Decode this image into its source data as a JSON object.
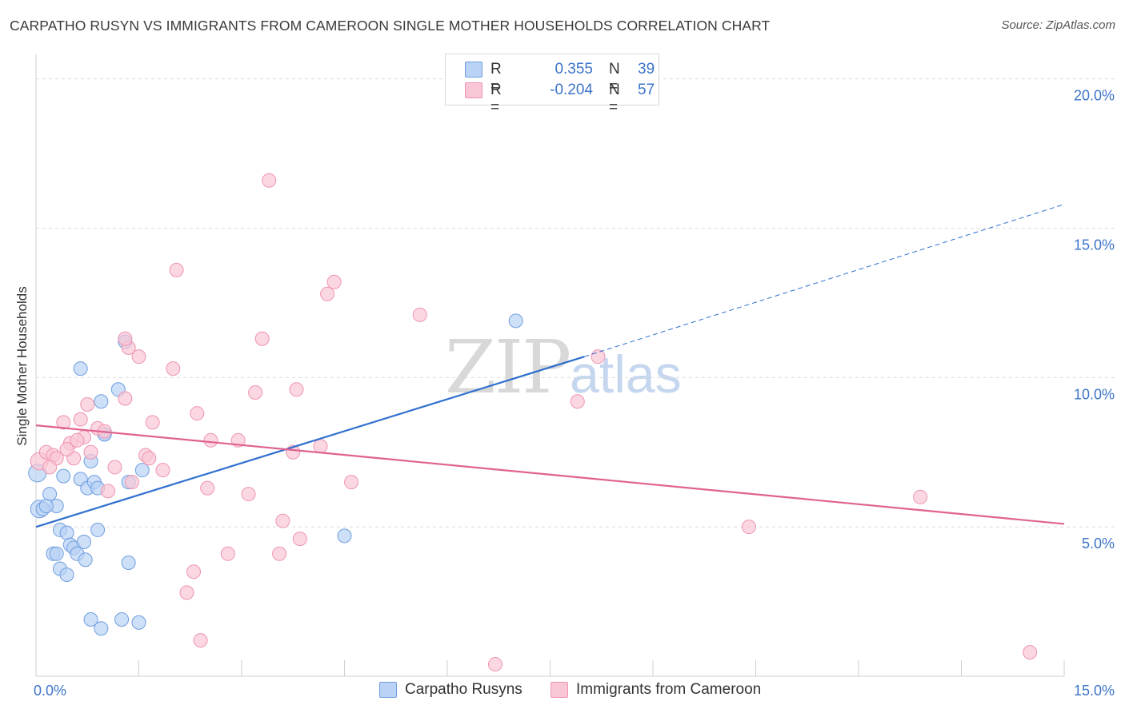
{
  "title": "CARPATHO RUSYN VS IMMIGRANTS FROM CAMEROON SINGLE MOTHER HOUSEHOLDS CORRELATION CHART",
  "source": "Source: ZipAtlas.com",
  "watermark": {
    "zip": "ZIP",
    "atlas": "atlas"
  },
  "legend": {
    "rows": [
      {
        "r_label": "R =",
        "r_value": "0.355",
        "n_label": "N =",
        "n_value": "39",
        "color": "#b9d2f5",
        "border": "#6f9fe0"
      },
      {
        "r_label": "R =",
        "r_value": "-0.204",
        "n_label": "N =",
        "n_value": "57",
        "color": "#f9c6d6",
        "border": "#ee94b0"
      }
    ]
  },
  "bottom_legend": [
    "Carpatho Rusyns",
    "Immigrants from Cameroon"
  ],
  "chart_data": {
    "type": "scatter",
    "title": "CARPATHO RUSYN VS IMMIGRANTS FROM CAMEROON SINGLE MOTHER HOUSEHOLDS CORRELATION CHART",
    "xlabel": "",
    "ylabel": "Single Mother Households",
    "xlim": [
      0,
      15
    ],
    "ylim": [
      0,
      20.5
    ],
    "x_ticks_labeled": [
      "0.0%",
      "15.0%"
    ],
    "y_ticks": [
      {
        "value": 5,
        "label": "5.0%"
      },
      {
        "value": 10,
        "label": "10.0%"
      },
      {
        "value": 15,
        "label": "15.0%"
      },
      {
        "value": 20,
        "label": "20.0%"
      }
    ],
    "grid": "horizontal dashed",
    "legend_position": "top-center",
    "series": [
      {
        "name": "Carpatho Rusyns",
        "color": "#6f9fe0",
        "fill": "#b9d2f5",
        "trend_color": "#2f6fce",
        "trend": {
          "x0": 0.0,
          "y0": 5.0,
          "x1": 8.0,
          "y1": 10.7,
          "extend_to_x": 15.0,
          "extend_to_y": 15.8
        },
        "points": [
          [
            0.02,
            6.8
          ],
          [
            0.05,
            5.6
          ],
          [
            0.1,
            5.6
          ],
          [
            0.2,
            6.1
          ],
          [
            0.3,
            5.7
          ],
          [
            0.35,
            4.9
          ],
          [
            0.4,
            6.7
          ],
          [
            0.45,
            4.8
          ],
          [
            0.5,
            4.4
          ],
          [
            0.55,
            4.3
          ],
          [
            0.6,
            4.1
          ],
          [
            0.65,
            6.6
          ],
          [
            0.7,
            4.5
          ],
          [
            0.72,
            3.9
          ],
          [
            0.75,
            6.3
          ],
          [
            0.8,
            7.2
          ],
          [
            0.85,
            6.5
          ],
          [
            0.9,
            4.9
          ],
          [
            0.95,
            9.2
          ],
          [
            1.0,
            8.1
          ],
          [
            1.3,
            11.2
          ],
          [
            1.35,
            6.5
          ],
          [
            1.55,
            6.9
          ],
          [
            1.2,
            9.6
          ],
          [
            0.65,
            10.3
          ],
          [
            0.35,
            3.6
          ],
          [
            0.45,
            3.4
          ],
          [
            0.8,
            1.9
          ],
          [
            0.95,
            1.6
          ],
          [
            1.25,
            1.9
          ],
          [
            1.5,
            1.8
          ],
          [
            1.35,
            3.8
          ],
          [
            0.25,
            4.1
          ],
          [
            0.3,
            4.1
          ],
          [
            0.9,
            6.3
          ],
          [
            4.5,
            4.7
          ],
          [
            7.0,
            11.9
          ],
          [
            1.0,
            8.1
          ],
          [
            0.15,
            5.7
          ]
        ]
      },
      {
        "name": "Immigrants from Cameroon",
        "color": "#ee94b0",
        "fill": "#f9c6d6",
        "trend_color": "#e0628f",
        "trend": {
          "x0": 0.0,
          "y0": 8.4,
          "x1": 15.0,
          "y1": 5.1
        },
        "points": [
          [
            0.05,
            7.2
          ],
          [
            0.15,
            7.5
          ],
          [
            0.25,
            7.4
          ],
          [
            0.3,
            7.3
          ],
          [
            0.4,
            8.5
          ],
          [
            0.5,
            7.8
          ],
          [
            0.55,
            7.3
          ],
          [
            0.65,
            8.6
          ],
          [
            0.75,
            9.1
          ],
          [
            0.8,
            7.5
          ],
          [
            0.9,
            8.3
          ],
          [
            1.0,
            8.2
          ],
          [
            1.05,
            6.2
          ],
          [
            1.15,
            7.0
          ],
          [
            1.3,
            9.3
          ],
          [
            1.4,
            6.5
          ],
          [
            1.5,
            10.7
          ],
          [
            1.6,
            7.4
          ],
          [
            1.7,
            8.5
          ],
          [
            1.85,
            6.9
          ],
          [
            2.0,
            10.3
          ],
          [
            2.05,
            13.6
          ],
          [
            2.35,
            8.8
          ],
          [
            2.5,
            6.3
          ],
          [
            2.55,
            7.9
          ],
          [
            2.8,
            4.1
          ],
          [
            2.95,
            7.9
          ],
          [
            3.1,
            6.1
          ],
          [
            3.2,
            9.5
          ],
          [
            3.3,
            11.3
          ],
          [
            3.4,
            16.6
          ],
          [
            3.55,
            4.1
          ],
          [
            3.6,
            5.2
          ],
          [
            3.75,
            7.5
          ],
          [
            3.8,
            9.6
          ],
          [
            3.85,
            4.6
          ],
          [
            4.15,
            7.7
          ],
          [
            4.25,
            12.8
          ],
          [
            4.35,
            13.2
          ],
          [
            4.6,
            6.5
          ],
          [
            5.6,
            12.1
          ],
          [
            7.9,
            9.2
          ],
          [
            8.2,
            10.7
          ],
          [
            10.4,
            5.0
          ],
          [
            12.9,
            6.0
          ],
          [
            14.5,
            0.8
          ],
          [
            6.7,
            0.4
          ],
          [
            2.3,
            3.5
          ],
          [
            2.2,
            2.8
          ],
          [
            2.4,
            1.2
          ],
          [
            1.35,
            11.0
          ],
          [
            1.3,
            11.3
          ],
          [
            0.7,
            8.0
          ],
          [
            0.6,
            7.9
          ],
          [
            1.65,
            7.3
          ],
          [
            0.2,
            7.0
          ],
          [
            0.45,
            7.6
          ]
        ]
      }
    ]
  }
}
